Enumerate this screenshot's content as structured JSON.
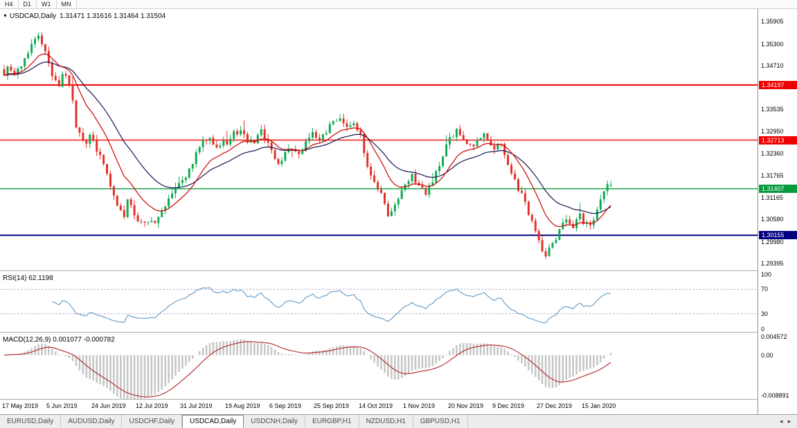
{
  "timeframe_bar": {
    "items": [
      "H4",
      "D1",
      "W1",
      "MN"
    ]
  },
  "chart": {
    "title": {
      "dropdown_icon": "▼",
      "symbol": "USDCAD,Daily",
      "ohlc": "1.31471 1.31616 1.31464 1.31504"
    },
    "axis_ticks": [
      "1.35905",
      "1.35300",
      "1.34710",
      "1.33535",
      "1.32950",
      "1.32360",
      "1.31765",
      "1.31165",
      "1.30580",
      "1.29980",
      "1.29395"
    ],
    "levels": [
      {
        "value": 1.34197,
        "label": "1.34197",
        "color": "#ee0000",
        "width": 2
      },
      {
        "value": 1.32713,
        "label": "1.32713",
        "color": "#ee0000",
        "width": 1.4
      },
      {
        "value": 1.31407,
        "label": "1.31407",
        "color": "#089a3e",
        "width": 1.4
      },
      {
        "value": 1.30155,
        "label": "1.30155",
        "color": "#000080",
        "width": 2
      }
    ],
    "date_labels": [
      "17 May 2019",
      "5 Jun 2019",
      "24 Jun 2019",
      "12 Jul 2019",
      "31 Jul 2019",
      "19 Aug 2019",
      "6 Sep 2019",
      "25 Sep 2019",
      "14 Oct 2019",
      "1 Nov 2019",
      "20 Nov 2019",
      "9 Dec 2019",
      "27 Dec 2019",
      "15 Jan 2020"
    ]
  },
  "rsi": {
    "title": "RSI(14) 62.1198",
    "period": 14,
    "value": 62.1198,
    "ticks": [
      "100",
      "70",
      "30",
      "0"
    ],
    "levels": [
      70,
      30
    ]
  },
  "macd": {
    "title": "MACD(12,26,9) 0.001077 -0.000782",
    "value": 0.001077,
    "signal": -0.000782,
    "ticks": [
      "0.004572",
      "0.00",
      "-0.008891"
    ],
    "range": {
      "max": 0.004572,
      "min": -0.008891
    }
  },
  "tab_bar": {
    "tabs": [
      {
        "label": "EURUSD,Daily"
      },
      {
        "label": "AUDUSD,Daily"
      },
      {
        "label": "USDCHF,Daily"
      },
      {
        "label": "USDCAD,Daily",
        "active": true
      },
      {
        "label": "USDCNH,Daily"
      },
      {
        "label": "EURGBP,H1"
      },
      {
        "label": "NZDUSD,H1"
      },
      {
        "label": "GBPUSD,H1"
      }
    ],
    "scroll_icons": [
      "◄",
      "►"
    ]
  },
  "chart_data": {
    "type": "candlestick",
    "symbol": "USDCAD",
    "timeframe": "Daily",
    "x_range": [
      "17 May 2019",
      "15 Jan 2020"
    ],
    "price_range": {
      "min": 1.2921,
      "max": 1.3624
    },
    "bars": 178,
    "seed": 9,
    "anchors": [
      [
        0,
        1.345
      ],
      [
        1,
        1.3466
      ],
      [
        3,
        1.3444
      ],
      [
        5,
        1.3472
      ],
      [
        7,
        1.3512
      ],
      [
        9,
        1.3546
      ],
      [
        10,
        1.3552
      ],
      [
        12,
        1.3504
      ],
      [
        14,
        1.3448
      ],
      [
        16,
        1.3412
      ],
      [
        17,
        1.3452
      ],
      [
        19,
        1.3428
      ],
      [
        20,
        1.3382
      ],
      [
        21,
        1.331
      ],
      [
        22,
        1.3286
      ],
      [
        24,
        1.3262
      ],
      [
        25,
        1.3288
      ],
      [
        27,
        1.3248
      ],
      [
        29,
        1.3202
      ],
      [
        31,
        1.3148
      ],
      [
        33,
        1.3092
      ],
      [
        35,
        1.306
      ],
      [
        36,
        1.3118
      ],
      [
        38,
        1.3072
      ],
      [
        40,
        1.3048
      ],
      [
        42,
        1.3058
      ],
      [
        44,
        1.3042
      ],
      [
        46,
        1.3078
      ],
      [
        48,
        1.3108
      ],
      [
        50,
        1.3142
      ],
      [
        52,
        1.316
      ],
      [
        54,
        1.3188
      ],
      [
        56,
        1.3238
      ],
      [
        58,
        1.327
      ],
      [
        60,
        1.3282
      ],
      [
        62,
        1.3252
      ],
      [
        64,
        1.3268
      ],
      [
        65,
        1.3262
      ],
      [
        67,
        1.3288
      ],
      [
        69,
        1.3296
      ],
      [
        71,
        1.3268
      ],
      [
        73,
        1.3262
      ],
      [
        75,
        1.3298
      ],
      [
        77,
        1.3262
      ],
      [
        78,
        1.3238
      ],
      [
        80,
        1.321
      ],
      [
        82,
        1.3232
      ],
      [
        84,
        1.3252
      ],
      [
        86,
        1.3236
      ],
      [
        88,
        1.3264
      ],
      [
        90,
        1.3288
      ],
      [
        92,
        1.3268
      ],
      [
        94,
        1.3296
      ],
      [
        96,
        1.3318
      ],
      [
        98,
        1.333
      ],
      [
        100,
        1.3308
      ],
      [
        102,
        1.3322
      ],
      [
        104,
        1.3285
      ],
      [
        105,
        1.324
      ],
      [
        106,
        1.3205
      ],
      [
        108,
        1.3162
      ],
      [
        110,
        1.3122
      ],
      [
        112,
        1.3068
      ],
      [
        114,
        1.3092
      ],
      [
        116,
        1.3142
      ],
      [
        117,
        1.3155
      ],
      [
        119,
        1.3182
      ],
      [
        121,
        1.3146
      ],
      [
        123,
        1.3128
      ],
      [
        125,
        1.3162
      ],
      [
        127,
        1.3205
      ],
      [
        129,
        1.3252
      ],
      [
        130,
        1.3272
      ],
      [
        132,
        1.3295
      ],
      [
        134,
        1.3272
      ],
      [
        136,
        1.3252
      ],
      [
        138,
        1.3268
      ],
      [
        140,
        1.3288
      ],
      [
        142,
        1.3262
      ],
      [
        143,
        1.3246
      ],
      [
        145,
        1.3262
      ],
      [
        146,
        1.3228
      ],
      [
        148,
        1.3178
      ],
      [
        150,
        1.3142
      ],
      [
        152,
        1.3108
      ],
      [
        154,
        1.3048
      ],
      [
        156,
        1.2998
      ],
      [
        158,
        1.2962
      ],
      [
        160,
        1.2988
      ],
      [
        162,
        1.3028
      ],
      [
        164,
        1.3058
      ],
      [
        166,
        1.3042
      ],
      [
        168,
        1.3068
      ],
      [
        169,
        1.3052
      ],
      [
        171,
        1.3042
      ],
      [
        173,
        1.3082
      ],
      [
        175,
        1.3132
      ],
      [
        176,
        1.3158
      ],
      [
        177,
        1.315
      ]
    ],
    "last_candle": {
      "o": 1.31471,
      "h": 1.31616,
      "l": 1.31464,
      "c": 1.31504
    },
    "indicators": {
      "ma_fast": {
        "period": 12,
        "color": "#cc0000"
      },
      "ma_slow": {
        "period": 26,
        "color": "#15154f"
      },
      "rsi_value": 62.1198,
      "macd_value": 0.001077,
      "macd_signal": -0.000782
    },
    "colors": {
      "up": "#0faa54",
      "down": "#e23128",
      "rsi_line": "#4f8fc0",
      "rsi_level": "#b9b9d0",
      "macd_hist": "#c6c6c6",
      "macd_signal": "#b52222",
      "level_red": "#ee0000",
      "level_green": "#089a3e",
      "level_navy": "#000080"
    }
  }
}
